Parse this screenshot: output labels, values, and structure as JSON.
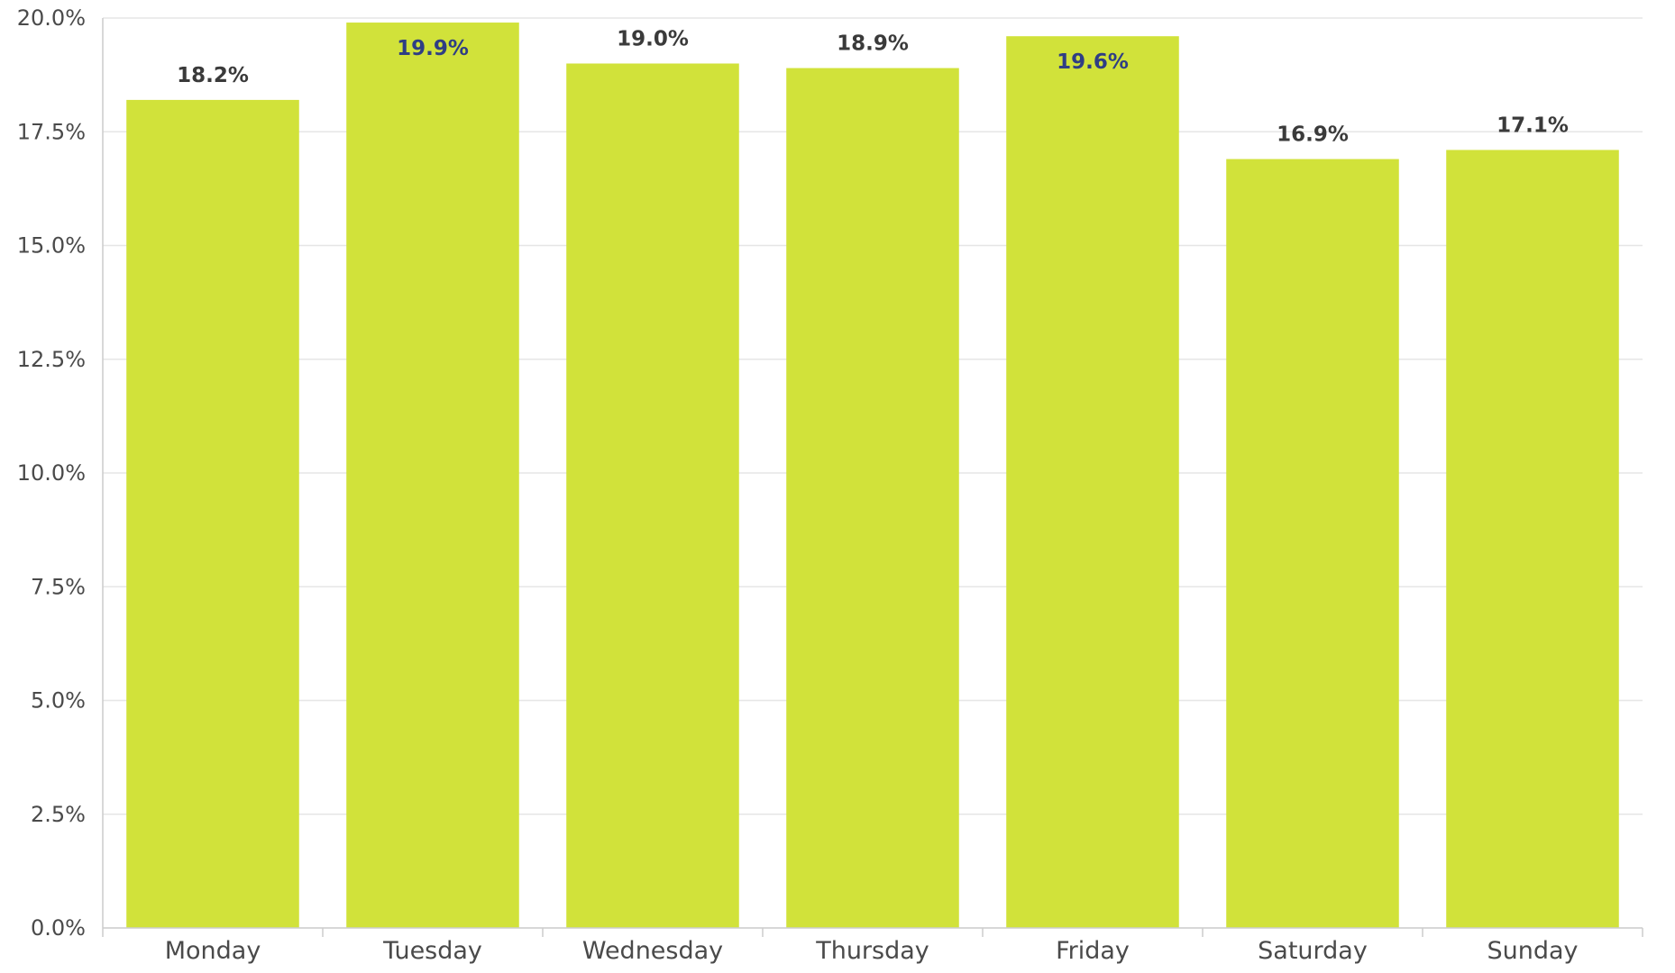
{
  "chart_data": {
    "type": "bar",
    "title": "",
    "xlabel": "",
    "ylabel": "",
    "categories": [
      "Monday",
      "Tuesday",
      "Wednesday",
      "Thursday",
      "Friday",
      "Saturday",
      "Sunday"
    ],
    "values": [
      18.2,
      19.9,
      19.0,
      18.9,
      19.6,
      16.9,
      17.1
    ],
    "value_labels": [
      "18.2%",
      "19.9%",
      "19.0%",
      "18.9%",
      "19.6%",
      "16.9%",
      "17.1%"
    ],
    "label_inside_bar": [
      false,
      true,
      false,
      false,
      true,
      false,
      false
    ],
    "ylim": [
      0,
      20
    ],
    "yticks": [
      0,
      2.5,
      5,
      7.5,
      10,
      12.5,
      15,
      17.5,
      20
    ],
    "ytick_labels": [
      "0.0%",
      "2.5%",
      "5.0%",
      "7.5%",
      "10.0%",
      "12.5%",
      "15.0%",
      "17.5%",
      "20.0%"
    ],
    "grid": true,
    "legend": "none",
    "colors": {
      "bar": "#d1e23a",
      "grid": "#e6e6e6",
      "axis": "#cccccc",
      "label_outside": "#3a3a3a",
      "label_inside": "#2f3e84"
    }
  }
}
